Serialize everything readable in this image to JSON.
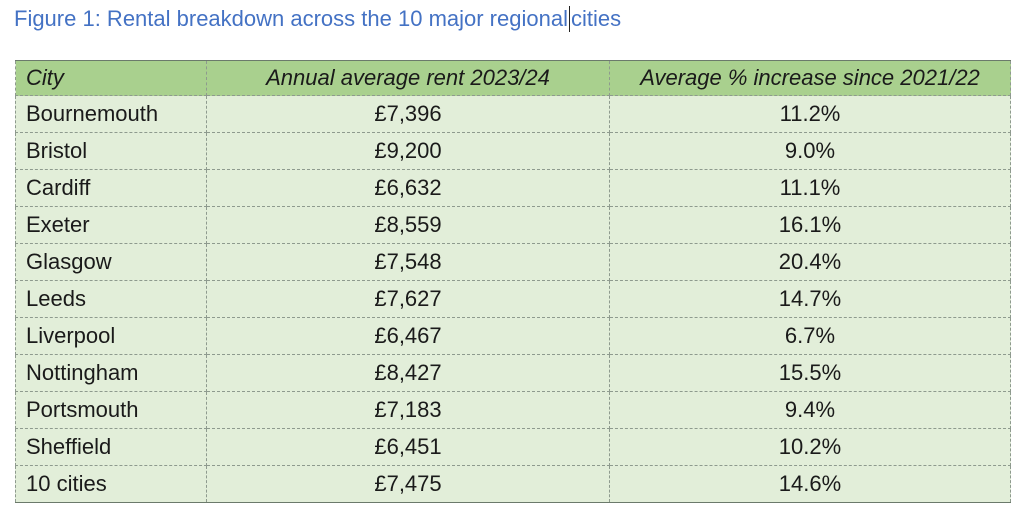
{
  "caption": {
    "part1": "Figure 1: Rental breakdown across the 10 major regional",
    "part2": "cities"
  },
  "table": {
    "headers": [
      "City",
      "Annual average rent 2023/24",
      "Average % increase since 2021/22"
    ],
    "rows": [
      [
        "Bournemouth",
        "£7,396",
        "11.2%"
      ],
      [
        "Bristol",
        "£9,200",
        "9.0%"
      ],
      [
        "Cardiff",
        "£6,632",
        "11.1%"
      ],
      [
        "Exeter",
        "£8,559",
        "16.1%"
      ],
      [
        "Glasgow",
        "£7,548",
        "20.4%"
      ],
      [
        "Leeds",
        "£7,627",
        "14.7%"
      ],
      [
        "Liverpool",
        "£6,467",
        "6.7%"
      ],
      [
        "Nottingham",
        "£8,427",
        "15.5%"
      ],
      [
        "Portsmouth",
        "£7,183",
        "9.4%"
      ],
      [
        "Sheffield",
        "£6,451",
        "10.2%"
      ],
      [
        "10 cities",
        "£7,475",
        "14.6%"
      ]
    ]
  },
  "colors": {
    "caption": "#4472c4",
    "header_fill": "#a9d08e",
    "body_fill": "#e2eed9"
  }
}
